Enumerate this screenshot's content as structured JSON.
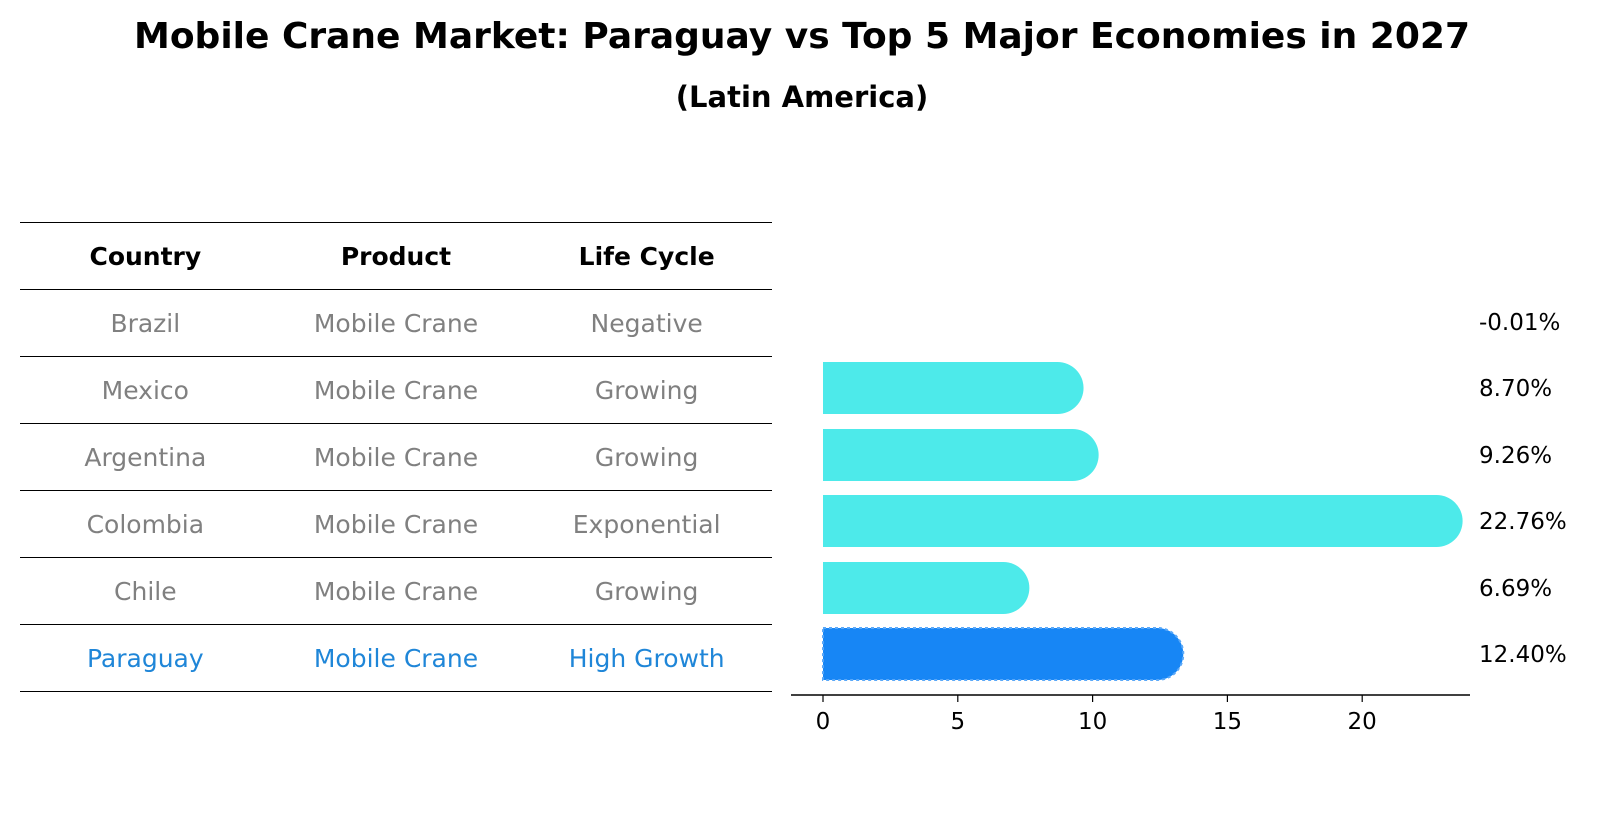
{
  "chart_data": {
    "type": "bar",
    "orientation": "horizontal",
    "title": "Mobile Crane Market: Paraguay vs Top 5 Major Economies in 2027",
    "subtitle": "(Latin America)",
    "table": {
      "headers": [
        "Country",
        "Product",
        "Life Cycle"
      ],
      "rows": [
        {
          "country": "Brazil",
          "product": "Mobile Crane",
          "life_cycle": "Negative"
        },
        {
          "country": "Mexico",
          "product": "Mobile Crane",
          "life_cycle": "Growing"
        },
        {
          "country": "Argentina",
          "product": "Mobile Crane",
          "life_cycle": "Growing"
        },
        {
          "country": "Colombia",
          "product": "Mobile Crane",
          "life_cycle": "Exponential"
        },
        {
          "country": "Chile",
          "product": "Mobile Crane",
          "life_cycle": "Growing"
        },
        {
          "country": "Paraguay",
          "product": "Mobile Crane",
          "life_cycle": "High Growth"
        }
      ]
    },
    "categories": [
      "Brazil",
      "Mexico",
      "Argentina",
      "Colombia",
      "Chile",
      "Paraguay"
    ],
    "values": [
      -0.01,
      8.7,
      9.26,
      22.76,
      6.69,
      12.4
    ],
    "value_labels": [
      "-0.01%",
      "8.70%",
      "9.26%",
      "22.76%",
      "6.69%",
      "12.40%"
    ],
    "highlight": "Paraguay",
    "xlim": [
      -1.2,
      24
    ],
    "xticks": [
      0,
      5,
      10,
      15,
      20
    ],
    "xlabel": "",
    "ylabel": "",
    "colors": {
      "bar": "#4deaea",
      "highlight_bar": "#1786f5",
      "highlight_text": "#1f86d8",
      "muted_text": "#808080"
    }
  }
}
